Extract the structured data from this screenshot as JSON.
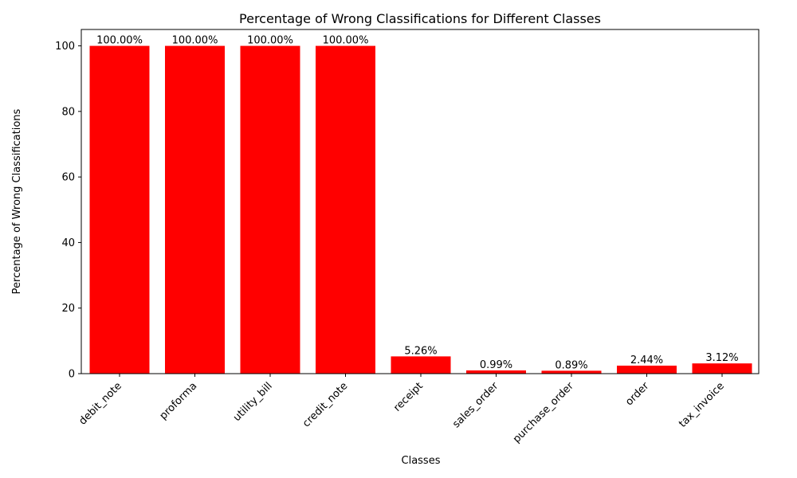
{
  "chart_data": {
    "type": "bar",
    "title": "Percentage of Wrong Classifications for Different Classes",
    "xlabel": "Classes",
    "ylabel": "Percentage of Wrong Classifications",
    "categories": [
      "debit_note",
      "proforma",
      "utility_bill",
      "credit_note",
      "receipt",
      "sales_order",
      "purchase_order",
      "order",
      "tax_invoice"
    ],
    "values": [
      100.0,
      100.0,
      100.0,
      100.0,
      5.26,
      0.99,
      0.89,
      2.44,
      3.12
    ],
    "data_labels": [
      "100.00%",
      "100.00%",
      "100.00%",
      "100.00%",
      "5.26%",
      "0.99%",
      "0.89%",
      "2.44%",
      "3.12%"
    ],
    "yticks": [
      0,
      20,
      40,
      60,
      80,
      100
    ],
    "ylim": [
      0,
      105
    ],
    "bar_color": "#ff0000",
    "grid": false,
    "legend": false
  }
}
